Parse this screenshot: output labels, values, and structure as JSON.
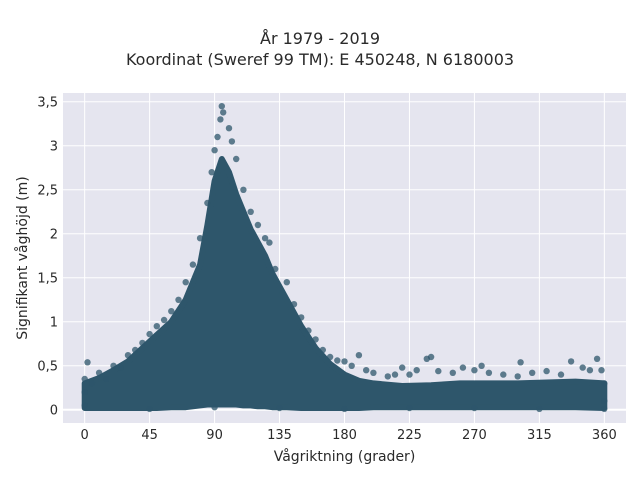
{
  "title": {
    "line1": "År 1979 - 2019",
    "line2": "Koordinat (Sweref 99 TM): E 450248, N 6180003"
  },
  "chart_data": {
    "type": "scatter",
    "xlabel": "Vågriktning (grader)",
    "ylabel": "Signifikant våghöjd (m)",
    "xlim": [
      -15,
      375
    ],
    "ylim": [
      -0.15,
      3.6
    ],
    "xticks": [
      0,
      45,
      90,
      135,
      180,
      225,
      270,
      315,
      360
    ],
    "xtick_labels": [
      "0",
      "45",
      "90",
      "135",
      "180",
      "225",
      "270",
      "315",
      "360"
    ],
    "yticks": [
      0,
      0.5,
      1,
      1.5,
      2,
      2.5,
      3,
      3.5
    ],
    "ytick_labels": [
      "0",
      "0,5",
      "1",
      "1,5",
      "2",
      "2,5",
      "3",
      "3,5"
    ],
    "grid": true,
    "marker_color": "#2e566b",
    "background_color": "#e5e5ef",
    "series": [
      {
        "points": [
          [
            0,
            0.05
          ],
          [
            0,
            0.2
          ],
          [
            0,
            0.35
          ],
          [
            2,
            0.54
          ],
          [
            5,
            0.3
          ],
          [
            10,
            0.42
          ],
          [
            15,
            0.35
          ],
          [
            20,
            0.5
          ],
          [
            25,
            0.48
          ],
          [
            30,
            0.62
          ],
          [
            35,
            0.68
          ],
          [
            40,
            0.76
          ],
          [
            45,
            0.86
          ],
          [
            50,
            0.95
          ],
          [
            55,
            1.02
          ],
          [
            60,
            1.12
          ],
          [
            65,
            1.25
          ],
          [
            70,
            1.45
          ],
          [
            75,
            1.65
          ],
          [
            80,
            1.95
          ],
          [
            85,
            2.35
          ],
          [
            88,
            2.7
          ],
          [
            90,
            2.95
          ],
          [
            92,
            3.1
          ],
          [
            94,
            3.3
          ],
          [
            95,
            3.45
          ],
          [
            96,
            3.38
          ],
          [
            100,
            3.2
          ],
          [
            102,
            3.05
          ],
          [
            105,
            2.85
          ],
          [
            110,
            2.5
          ],
          [
            115,
            2.25
          ],
          [
            120,
            2.1
          ],
          [
            125,
            1.95
          ],
          [
            128,
            1.9
          ],
          [
            132,
            1.6
          ],
          [
            140,
            1.45
          ],
          [
            145,
            1.2
          ],
          [
            150,
            1.05
          ],
          [
            155,
            0.9
          ],
          [
            160,
            0.8
          ],
          [
            165,
            0.68
          ],
          [
            170,
            0.6
          ],
          [
            175,
            0.56
          ],
          [
            180,
            0.55
          ],
          [
            185,
            0.5
          ],
          [
            190,
            0.62
          ],
          [
            195,
            0.45
          ],
          [
            200,
            0.42
          ],
          [
            210,
            0.38
          ],
          [
            215,
            0.4
          ],
          [
            220,
            0.48
          ],
          [
            225,
            0.4
          ],
          [
            230,
            0.45
          ],
          [
            237,
            0.58
          ],
          [
            240,
            0.6
          ],
          [
            245,
            0.44
          ],
          [
            255,
            0.42
          ],
          [
            262,
            0.48
          ],
          [
            270,
            0.45
          ],
          [
            275,
            0.5
          ],
          [
            280,
            0.42
          ],
          [
            290,
            0.4
          ],
          [
            300,
            0.38
          ],
          [
            302,
            0.54
          ],
          [
            310,
            0.42
          ],
          [
            320,
            0.44
          ],
          [
            330,
            0.4
          ],
          [
            337,
            0.55
          ],
          [
            345,
            0.48
          ],
          [
            350,
            0.45
          ],
          [
            355,
            0.58
          ],
          [
            358,
            0.45
          ],
          [
            360,
            0.3
          ],
          [
            360,
            0.1
          ],
          [
            360,
            0.01
          ],
          [
            45,
            0.01
          ],
          [
            90,
            0.03
          ],
          [
            135,
            0.02
          ],
          [
            180,
            0.01
          ],
          [
            225,
            0.02
          ],
          [
            270,
            0.02
          ],
          [
            315,
            0.01
          ]
        ]
      }
    ],
    "envelope": {
      "x": [
        0,
        10,
        20,
        30,
        40,
        50,
        60,
        70,
        80,
        85,
        90,
        95,
        100,
        105,
        110,
        115,
        120,
        125,
        130,
        140,
        150,
        160,
        170,
        180,
        190,
        200,
        220,
        240,
        260,
        280,
        300,
        320,
        340,
        360
      ],
      "upper": [
        0.3,
        0.36,
        0.45,
        0.55,
        0.7,
        0.85,
        1.0,
        1.25,
        1.65,
        2.1,
        2.6,
        2.85,
        2.7,
        2.45,
        2.25,
        2.05,
        1.9,
        1.75,
        1.55,
        1.25,
        0.95,
        0.7,
        0.52,
        0.4,
        0.33,
        0.3,
        0.27,
        0.28,
        0.3,
        0.3,
        0.3,
        0.31,
        0.32,
        0.3
      ],
      "lower": [
        0.02,
        0.02,
        0.02,
        0.02,
        0.02,
        0.02,
        0.03,
        0.03,
        0.05,
        0.06,
        0.06,
        0.06,
        0.06,
        0.06,
        0.05,
        0.05,
        0.04,
        0.04,
        0.03,
        0.03,
        0.02,
        0.02,
        0.02,
        0.02,
        0.02,
        0.03,
        0.03,
        0.03,
        0.03,
        0.03,
        0.03,
        0.03,
        0.03,
        0.02
      ]
    }
  }
}
